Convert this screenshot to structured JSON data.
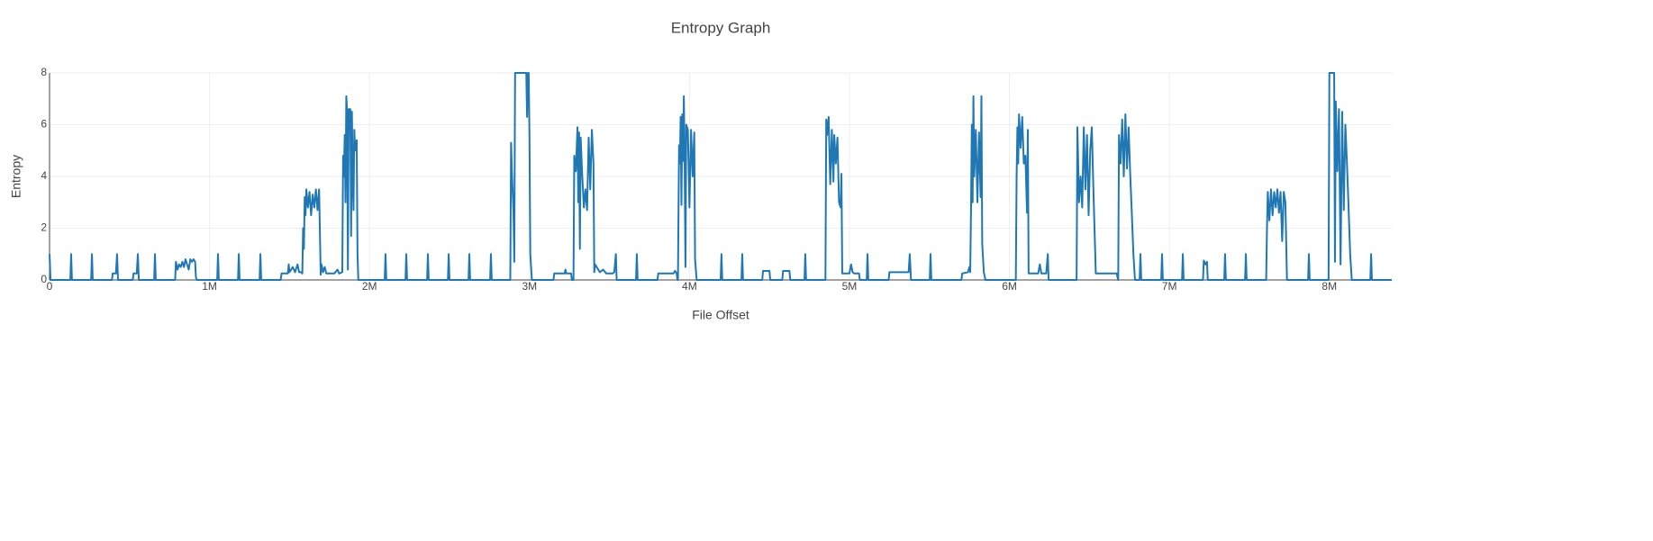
{
  "chart_data": {
    "type": "line",
    "title": "Entropy Graph",
    "x_label": "File Offset",
    "y_label": "Entropy",
    "xlim": [
      0,
      8390000
    ],
    "ylim": [
      0,
      8
    ],
    "xticks": [
      0,
      {
        "value": 1000000,
        "label": "1M"
      },
      {
        "value": 2000000,
        "label": "2M"
      },
      {
        "value": 3000000,
        "label": "3M"
      },
      {
        "value": 4000000,
        "label": "4M"
      },
      {
        "value": 5000000,
        "label": "5M"
      },
      {
        "value": 6000000,
        "label": "6M"
      },
      {
        "value": 7000000,
        "label": "7M"
      },
      {
        "value": 8000000,
        "label": "8M"
      }
    ],
    "yticks": [
      0,
      2,
      4,
      6,
      8
    ],
    "grid": true,
    "series": [
      {
        "color": "#1f77b4",
        "x": [
          0,
          6000,
          130000,
          135000,
          140000,
          260000,
          265000,
          270000,
          390000,
          395000,
          415000,
          422000,
          428000,
          520000,
          525000,
          545000,
          552000,
          558000,
          654000,
          659000,
          664000,
          785000,
          790000,
          800000,
          810000,
          820000,
          830000,
          840000,
          850000,
          860000,
          870000,
          880000,
          890000,
          900000,
          910000,
          915000,
          920000,
          1048000,
          1053000,
          1058000,
          1178000,
          1183000,
          1188000,
          1313000,
          1318000,
          1323000,
          1445000,
          1450000,
          1490000,
          1495000,
          1500000,
          1520000,
          1535000,
          1550000,
          1560000,
          1575000,
          1580000,
          1585000,
          1590000,
          1595000,
          1600000,
          1605000,
          1615000,
          1625000,
          1635000,
          1645000,
          1655000,
          1665000,
          1675000,
          1685000,
          1695000,
          1700000,
          1710000,
          1720000,
          1730000,
          1780000,
          1800000,
          1810000,
          1830000,
          1835000,
          1840000,
          1845000,
          1850000,
          1855000,
          1860000,
          1865000,
          1870000,
          1880000,
          1885000,
          1890000,
          1895000,
          1900000,
          1905000,
          1910000,
          1920000,
          1925000,
          1930000,
          2095000,
          2100000,
          2105000,
          2225000,
          2230000,
          2235000,
          2360000,
          2365000,
          2370000,
          2490000,
          2495000,
          2500000,
          2619000,
          2624000,
          2629000,
          2754000,
          2759000,
          2764000,
          2880000,
          2885000,
          2890000,
          2900000,
          2905000,
          2910000,
          2980000,
          2985000,
          2990000,
          2995000,
          3000000,
          3005000,
          3015000,
          3150000,
          3155000,
          3220000,
          3225000,
          3230000,
          3260000,
          3265000,
          3275000,
          3280000,
          3290000,
          3300000,
          3305000,
          3310000,
          3315000,
          3320000,
          3330000,
          3340000,
          3350000,
          3360000,
          3370000,
          3380000,
          3390000,
          3400000,
          3405000,
          3410000,
          3420000,
          3440000,
          3460000,
          3480000,
          3520000,
          3530000,
          3540000,
          3545000,
          3666000,
          3671000,
          3676000,
          3800000,
          3805000,
          3900000,
          3910000,
          3920000,
          3925000,
          3928000,
          3935000,
          3940000,
          3945000,
          3950000,
          3955000,
          3960000,
          3965000,
          3970000,
          3975000,
          3980000,
          3990000,
          4000000,
          4010000,
          4020000,
          4030000,
          4035000,
          4045000,
          4195000,
          4200000,
          4205000,
          4325000,
          4330000,
          4335000,
          4455000,
          4460000,
          4500000,
          4505000,
          4580000,
          4585000,
          4625000,
          4630000,
          4719000,
          4724000,
          4729000,
          4850000,
          4855000,
          4860000,
          4870000,
          4880000,
          4890000,
          4900000,
          4905000,
          4915000,
          4925000,
          4935000,
          4945000,
          4950000,
          4955000,
          5000000,
          5010000,
          5020000,
          5030000,
          5060000,
          5065000,
          5108000,
          5113000,
          5118000,
          5245000,
          5250000,
          5370000,
          5377000,
          5385000,
          5502000,
          5507000,
          5512000,
          5700000,
          5705000,
          5740000,
          5750000,
          5755000,
          5760000,
          5765000,
          5770000,
          5775000,
          5780000,
          5790000,
          5800000,
          5810000,
          5820000,
          5825000,
          5830000,
          5840000,
          5850000,
          6040000,
          6045000,
          6050000,
          6055000,
          6060000,
          6070000,
          6080000,
          6090000,
          6100000,
          6110000,
          6115000,
          6120000,
          6180000,
          6190000,
          6200000,
          6230000,
          6240000,
          6245000,
          6420000,
          6425000,
          6435000,
          6445000,
          6455000,
          6465000,
          6475000,
          6485000,
          6495000,
          6505000,
          6515000,
          6525000,
          6540000,
          6670000,
          6680000,
          6685000,
          6695000,
          6705000,
          6715000,
          6725000,
          6735000,
          6745000,
          6755000,
          6765000,
          6775000,
          6785000,
          6814000,
          6819000,
          6824000,
          6949000,
          6954000,
          6959000,
          7079000,
          7084000,
          7089000,
          7210000,
          7215000,
          7225000,
          7235000,
          7240000,
          7343000,
          7348000,
          7353000,
          7473000,
          7478000,
          7483000,
          7605000,
          7610000,
          7615000,
          7625000,
          7635000,
          7645000,
          7655000,
          7665000,
          7675000,
          7685000,
          7695000,
          7705000,
          7715000,
          7725000,
          7735000,
          7867000,
          7872000,
          7877000,
          7995000,
          8000000,
          8030000,
          8035000,
          8040000,
          8050000,
          8060000,
          8070000,
          8080000,
          8090000,
          8100000,
          8110000,
          8120000,
          8130000,
          8140000,
          8256000,
          8261000,
          8266000,
          8390000
        ],
        "values": [
          1,
          0,
          0,
          1,
          0,
          0,
          1,
          0,
          0,
          0.25,
          0.25,
          1,
          0,
          0,
          0.25,
          0.25,
          1,
          0,
          0,
          1,
          0,
          0,
          0.7,
          0.4,
          0.6,
          0.5,
          0.7,
          0.5,
          0.8,
          0.6,
          0.4,
          0.8,
          0.7,
          0.8,
          0.7,
          0.1,
          0,
          0,
          1,
          0,
          0,
          1,
          0,
          0,
          1,
          0,
          0,
          0.25,
          0.25,
          0.6,
          0.3,
          0.5,
          0.3,
          0.6,
          0.3,
          0.3,
          0.25,
          2,
          1.2,
          3.2,
          2.5,
          3.5,
          2.8,
          3.4,
          2.5,
          3.3,
          2.8,
          3.5,
          2.7,
          3.5,
          0.2,
          0.6,
          0.3,
          0.5,
          0.25,
          0.25,
          0.4,
          0.25,
          0.3,
          4.8,
          4,
          5.6,
          3,
          7.1,
          6.5,
          0.4,
          6.6,
          6.6,
          1.7,
          6.5,
          4,
          2.7,
          5.8,
          5,
          5.4,
          1,
          0,
          0,
          1,
          0,
          0,
          1,
          0,
          0,
          1,
          0,
          0,
          1,
          0,
          0,
          1,
          0,
          0,
          1,
          0,
          0,
          5.3,
          4.2,
          2.6,
          0.7,
          8,
          8,
          6.3,
          8,
          8,
          5.5,
          1,
          0,
          0,
          0.25,
          0.25,
          0.4,
          0.25,
          0.25,
          0,
          0,
          4.8,
          4.2,
          5.9,
          3,
          5.7,
          1.2,
          5.5,
          4,
          2.8,
          3.5,
          2.7,
          5.5,
          3.5,
          5.8,
          4.5,
          0.3,
          0.6,
          0.5,
          0.3,
          0.4,
          0.25,
          0.25,
          0.3,
          1,
          0,
          0,
          1,
          0,
          0,
          0.25,
          0.25,
          0.35,
          0.25,
          0,
          0,
          5.2,
          4.5,
          6.3,
          2.9,
          6.4,
          4.6,
          7.1,
          4.4,
          0.5,
          6,
          5.8,
          2.8,
          5.8,
          4,
          5.7,
          0.8,
          0,
          0,
          1,
          0,
          0,
          1,
          0,
          0,
          0.35,
          0.35,
          0,
          0,
          0.35,
          0.35,
          0,
          0,
          1,
          0,
          0,
          6.2,
          5.6,
          6.3,
          3.7,
          5.8,
          3.8,
          5.6,
          4.5,
          5.5,
          3,
          2.8,
          4.1,
          0.25,
          0.25,
          0.6,
          0.3,
          0.25,
          0.25,
          0,
          0,
          1,
          0,
          0,
          0.3,
          0.3,
          1,
          0,
          0,
          1,
          0,
          0,
          0.25,
          0.3,
          0.5,
          0.3,
          2.7,
          6,
          3,
          7.1,
          4,
          5.8,
          3,
          5.7,
          3.2,
          7.1,
          1.4,
          0.3,
          0,
          0,
          4,
          5.9,
          4.5,
          6.4,
          5.1,
          6.3,
          4.5,
          4.8,
          2.6,
          5.8,
          0.25,
          0.25,
          0.6,
          0.25,
          0.25,
          1,
          0,
          0,
          5.9,
          3,
          4,
          2.8,
          5.9,
          3.5,
          5.6,
          2.5,
          5,
          5.9,
          3.5,
          0.25,
          0.25,
          0,
          5.6,
          4.5,
          6.2,
          4,
          6.4,
          4.3,
          5.9,
          4.1,
          2.6,
          1,
          0,
          0,
          1,
          0,
          0,
          1,
          0,
          0,
          1,
          0,
          0,
          0.75,
          0.6,
          0.7,
          0,
          0,
          1,
          0,
          0,
          1,
          0,
          0,
          2,
          3.4,
          2.3,
          3.5,
          2.5,
          3.4,
          2.8,
          3.5,
          2.6,
          3.4,
          1.5,
          3.4,
          3,
          0,
          0,
          1,
          0,
          0,
          8,
          8,
          0.7,
          6.9,
          4.2,
          6.6,
          0.6,
          6.5,
          2.7,
          6,
          4.5,
          2.8,
          1,
          0,
          0,
          1,
          0,
          0
        ]
      }
    ]
  }
}
